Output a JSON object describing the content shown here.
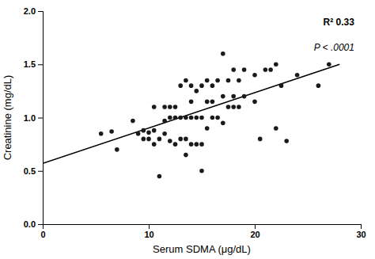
{
  "chart_data": {
    "type": "scatter",
    "xlabel": "Serum SDMA (μg/dL)",
    "ylabel": "Creatinine (mg/dL)",
    "xlim": [
      0,
      30
    ],
    "ylim": [
      0.0,
      2.0
    ],
    "xticks": [
      0,
      10,
      20,
      30
    ],
    "yticks": [
      {
        "value": 0.0,
        "label": "0.0"
      },
      0.5,
      {
        "value": 1.0,
        "label": "1.0"
      },
      1.5,
      {
        "value": 2.0,
        "label": "2.0"
      }
    ],
    "annotations": [
      "R² 0.33",
      "P < .0001"
    ],
    "series": [
      {
        "type": "scatter",
        "color": "#1a1a1a",
        "x": [
          5.5,
          6.5,
          7.0,
          8.5,
          9.0,
          9.5,
          9.5,
          10.0,
          10.0,
          10.5,
          10.5,
          10.5,
          11.0,
          11.0,
          11.5,
          11.5,
          11.5,
          12.0,
          12.0,
          12.0,
          12.5,
          12.5,
          12.5,
          13.0,
          13.0,
          13.0,
          13.5,
          13.5,
          13.5,
          13.5,
          14.0,
          14.0,
          14.0,
          14.0,
          14.5,
          14.5,
          14.5,
          15.0,
          15.0,
          15.0,
          15.0,
          15.5,
          15.5,
          15.5,
          16.0,
          16.0,
          16.0,
          16.5,
          16.5,
          17.0,
          17.0,
          17.0,
          17.5,
          17.5,
          18.0,
          18.0,
          18.0,
          18.5,
          18.5,
          19.0,
          19.0,
          20.0,
          20.0,
          20.5,
          21.0,
          21.5,
          22.0,
          22.0,
          22.5,
          23.0,
          24.0,
          26.0,
          27.0
        ],
        "values": [
          0.85,
          0.87,
          0.7,
          0.97,
          0.85,
          0.8,
          0.88,
          0.8,
          0.86,
          0.75,
          0.88,
          1.1,
          0.45,
          0.8,
          0.85,
          0.97,
          1.1,
          0.78,
          1.0,
          1.1,
          0.75,
          1.0,
          1.1,
          0.8,
          1.0,
          1.3,
          0.65,
          0.8,
          1.0,
          1.35,
          0.75,
          1.0,
          1.15,
          1.3,
          0.75,
          1.0,
          1.25,
          0.5,
          0.75,
          1.0,
          1.3,
          0.9,
          1.15,
          1.35,
          1.0,
          1.15,
          1.3,
          1.0,
          1.35,
          0.95,
          1.2,
          1.6,
          1.1,
          1.35,
          1.1,
          1.2,
          1.45,
          1.1,
          1.35,
          1.2,
          1.45,
          1.15,
          1.4,
          0.8,
          1.45,
          1.45,
          0.9,
          1.5,
          1.3,
          0.78,
          1.4,
          1.3,
          1.5
        ]
      },
      {
        "type": "line",
        "color": "#000000",
        "x": [
          0,
          28
        ],
        "values": [
          0.57,
          1.5
        ]
      }
    ]
  }
}
